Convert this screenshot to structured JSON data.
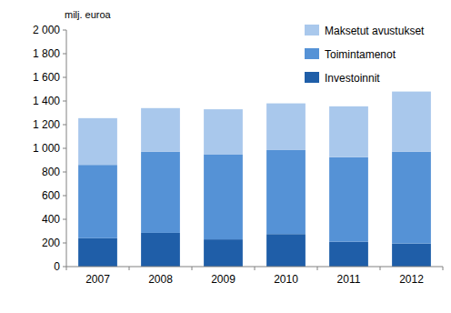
{
  "chart_data": {
    "type": "bar",
    "stacked": true,
    "y_label": "milj. euroa",
    "categories": [
      "2007",
      "2008",
      "2009",
      "2010",
      "2011",
      "2012"
    ],
    "series": [
      {
        "name": "Investoinnit",
        "color": "#1f5ea8",
        "values": [
          240,
          285,
          230,
          275,
          210,
          195
        ]
      },
      {
        "name": "Toimintamenot",
        "color": "#5592d6",
        "values": [
          620,
          685,
          720,
          710,
          715,
          775
        ]
      },
      {
        "name": "Maksetut avustukset",
        "color": "#a9c8ec",
        "values": [
          395,
          370,
          380,
          395,
          430,
          510
        ]
      }
    ],
    "ylim": [
      0,
      2000
    ],
    "yticks": [
      0,
      200,
      400,
      600,
      800,
      {
        "value": 1000,
        "label": "1 000"
      },
      {
        "value": 1200,
        "label": "1 200"
      },
      {
        "value": 1400,
        "label": "1 400"
      },
      {
        "value": 1600,
        "label": "1 600"
      },
      {
        "value": 1800,
        "label": "1 800"
      },
      {
        "value": 2000,
        "label": "2 000"
      }
    ],
    "grid": false,
    "legend": "top-right"
  }
}
